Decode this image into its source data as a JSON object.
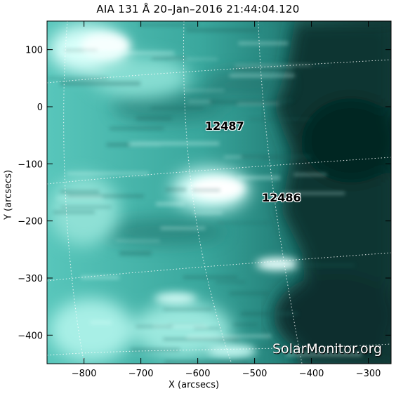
{
  "title": "AIA 131 Å 20–Jan–2016 21:44:04.120",
  "axes": {
    "xlabel": "X (arcsecs)",
    "ylabel": "Y (arcsecs)",
    "x_ticks": [
      "−800",
      "−700",
      "−600",
      "−500",
      "−400",
      "−300"
    ],
    "y_ticks": [
      "100",
      "0",
      "−100",
      "−200",
      "−300",
      "−400"
    ],
    "x_range": [
      -865,
      -260
    ],
    "y_range": [
      -450,
      150
    ]
  },
  "regions": [
    {
      "label": "12487",
      "x": -560,
      "y": -35
    },
    {
      "label": "12486",
      "x": -460,
      "y": -160
    }
  ],
  "watermark": "SolarMonitor.org",
  "colors": {
    "teal": "#1fb3a8",
    "bright": "#e6fffb",
    "dark": "#0d4542"
  }
}
